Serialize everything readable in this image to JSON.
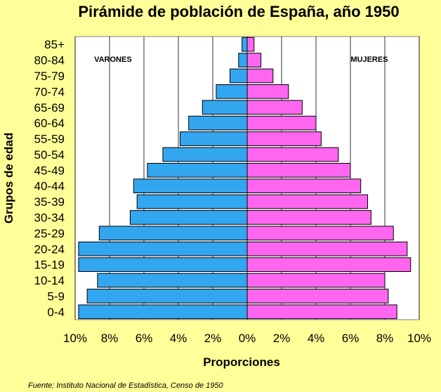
{
  "chart_data": {
    "type": "bar",
    "orientation": "horizontal",
    "title": "Pirámide de población de España, año 1950",
    "xlabel": "Proporciones",
    "ylabel": "Grupos de edad",
    "xlim": [
      -10,
      10
    ],
    "x_ticks": [
      "10%",
      "8%",
      "6%",
      "4%",
      "2%",
      "0%",
      "2%",
      "4%",
      "6%",
      "8%",
      "10%"
    ],
    "grid": true,
    "categories": [
      "85+",
      "80-84",
      "75-79",
      "70-74",
      "65-69",
      "60-64",
      "55-59",
      "50-54",
      "45-49",
      "40-44",
      "35-39",
      "30-34",
      "25-29",
      "20-24",
      "15-19",
      "10-14",
      "5-9",
      "0-4"
    ],
    "series": [
      {
        "name": "VARONES",
        "color": "#33a6f0",
        "values": [
          0.3,
          0.5,
          1.0,
          1.8,
          2.6,
          3.4,
          3.9,
          4.9,
          5.8,
          6.6,
          6.4,
          6.8,
          8.6,
          9.8,
          9.8,
          8.7,
          9.3,
          9.8
        ]
      },
      {
        "name": "MUJERES",
        "color": "#ff66f0",
        "values": [
          0.4,
          0.8,
          1.5,
          2.4,
          3.2,
          4.0,
          4.3,
          5.3,
          6.0,
          6.6,
          7.0,
          7.2,
          8.5,
          9.3,
          9.5,
          8.0,
          8.2,
          8.7
        ]
      }
    ],
    "colors": {
      "background": "#ffff99",
      "plot_background": "#ffffff",
      "bar_outline": "#000000"
    }
  },
  "source": "Fuente: Instituto Nacional de Estadística, Censo de 1950"
}
